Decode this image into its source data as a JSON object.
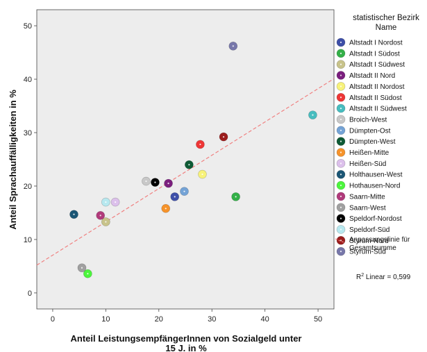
{
  "chart_data": {
    "type": "scatter",
    "xlabel_lines": [
      "Anteil LeistungsempfängerInnen von Sozialgeld unter",
      "15 J. in %"
    ],
    "ylabel": "Anteil Sprachauffälligkeiten in %",
    "xlim": [
      -3,
      53
    ],
    "ylim": [
      -3,
      53
    ],
    "xticks": [
      0,
      10,
      20,
      30,
      40,
      50
    ],
    "yticks": [
      0,
      10,
      20,
      30,
      40,
      50
    ],
    "grid": false,
    "legend_position": "right",
    "legend_title_lines": [
      "statistischer Bezirk",
      "Name"
    ],
    "series": [
      {
        "name": "Altstadt I Nordost",
        "color": "#3e4fa8",
        "points": [
          [
            23.0,
            18.0
          ]
        ]
      },
      {
        "name": "Altstadt I Südost",
        "color": "#33b048",
        "points": [
          [
            34.5,
            18.0
          ]
        ]
      },
      {
        "name": "Altstadt I Südwest",
        "color": "#c8c38a",
        "points": [
          [
            10.0,
            13.3
          ]
        ]
      },
      {
        "name": "Altstadt II Nord",
        "color": "#7b1f7e",
        "points": [
          [
            21.8,
            20.5
          ]
        ]
      },
      {
        "name": "Altstadt II Nordost",
        "color": "#f7f27a",
        "points": [
          [
            28.2,
            22.2
          ]
        ]
      },
      {
        "name": "Altstadt II Südost",
        "color": "#ee3636",
        "points": [
          [
            27.8,
            27.8
          ]
        ]
      },
      {
        "name": "Altstadt II Südwest",
        "color": "#47bdbf",
        "points": [
          [
            49.0,
            33.3
          ]
        ]
      },
      {
        "name": "Broich-West",
        "color": "#c8c8c8",
        "points": [
          [
            17.6,
            20.9
          ]
        ]
      },
      {
        "name": "Dümpten-Ost",
        "color": "#74a3d6",
        "points": [
          [
            24.8,
            19.0
          ]
        ]
      },
      {
        "name": "Dümpten-West",
        "color": "#0e5a35",
        "points": [
          [
            25.7,
            24.0
          ]
        ]
      },
      {
        "name": "Heißen-Mitte",
        "color": "#f6932a",
        "points": [
          [
            21.3,
            15.8
          ]
        ]
      },
      {
        "name": "Heißen-Süd",
        "color": "#dcc0eb",
        "points": [
          [
            11.8,
            17.0
          ]
        ]
      },
      {
        "name": "Holthausen-West",
        "color": "#1b5675",
        "points": [
          [
            4.0,
            14.7
          ]
        ]
      },
      {
        "name": "Hothausen-Nord",
        "color": "#4cf53c",
        "points": [
          [
            6.6,
            3.6
          ]
        ]
      },
      {
        "name": "Saarn-Mitte",
        "color": "#b13a7b",
        "points": [
          [
            9.0,
            14.5
          ]
        ]
      },
      {
        "name": "Saarn-West",
        "color": "#a0a0a0",
        "points": [
          [
            5.5,
            4.7
          ]
        ]
      },
      {
        "name": "Speldorf-Nordost",
        "color": "#000000",
        "points": [
          [
            19.3,
            20.7
          ]
        ]
      },
      {
        "name": "Speldorf-Süd",
        "color": "#b7e8ef",
        "points": [
          [
            10.0,
            17.0
          ]
        ]
      },
      {
        "name": "Styrum-Nord",
        "color": "#9b1d1d",
        "points": [
          [
            32.2,
            29.2
          ]
        ]
      },
      {
        "name": "Styrum-Süd",
        "color": "#7777aa",
        "points": [
          [
            34.0,
            46.2
          ]
        ]
      }
    ],
    "fit_line": {
      "label_lines": [
        "Anpassungslinie für",
        "Gesamtsumme"
      ],
      "color": "#f08080",
      "points": [
        [
          -3,
          5.2
        ],
        [
          53,
          40.1
        ]
      ]
    },
    "r2_label": "Linear = 0,599"
  }
}
